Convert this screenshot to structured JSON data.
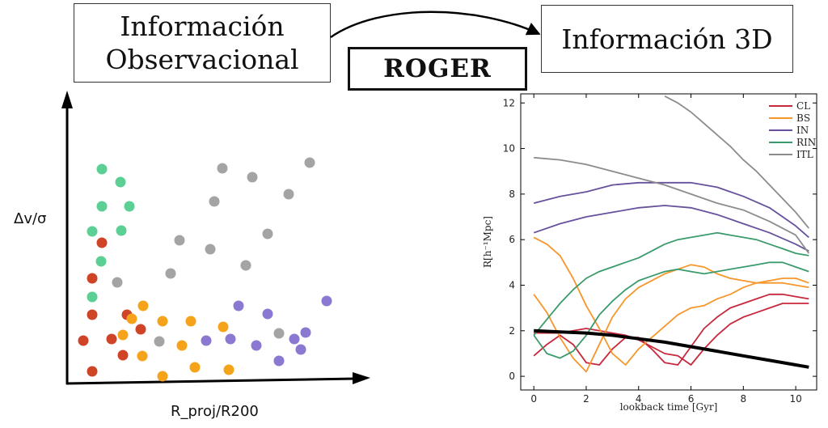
{
  "header": {
    "obs_line1": "Información",
    "obs_line2": "Observacional",
    "roger": "ROGER",
    "info3d": "Información 3D"
  },
  "left_plot": {
    "ylabel": "Δv/σ",
    "xlabel": "R_proj/R200",
    "colors": {
      "green": "#5ccf95",
      "red": "#cf4426",
      "orange": "#f5a31b",
      "gray": "#a4a4a4",
      "purple": "#8b78d0"
    }
  },
  "chart_data": {
    "type": "line",
    "xlabel": "lookback time [Gyr]",
    "ylabel": "R[h⁻¹Mpc]",
    "xlim": [
      -0.5,
      10.8
    ],
    "ylim": [
      -0.6,
      12.4
    ],
    "xticks": [
      0,
      2,
      4,
      6,
      8,
      10
    ],
    "yticks": [
      0,
      2,
      4,
      6,
      8,
      10,
      12
    ],
    "legend": {
      "placement": "top-right",
      "entries": [
        {
          "label": "CL",
          "color": "#c8283c"
        },
        {
          "label": "BS",
          "color": "#f7962c"
        },
        {
          "label": "IN",
          "color": "#67519c"
        },
        {
          "label": "RIN",
          "color": "#3a9b6c"
        },
        {
          "label": "ITL",
          "color": "#8c8c8c"
        }
      ]
    },
    "series": [
      {
        "group": "CL",
        "x": [
          0,
          0.5,
          1,
          1.5,
          2,
          2.5,
          3,
          3.5,
          4,
          4.5,
          5,
          5.5,
          6,
          6.5,
          7,
          7.5,
          8,
          8.5,
          9,
          9.5,
          10,
          10.5
        ],
        "y": [
          0.9,
          1.4,
          1.8,
          1.4,
          0.6,
          0.5,
          1.2,
          1.7,
          1.7,
          1.2,
          0.6,
          0.5,
          1.3,
          2.1,
          2.6,
          3.0,
          3.2,
          3.4,
          3.6,
          3.6,
          3.5,
          3.4
        ]
      },
      {
        "group": "CL",
        "x": [
          0,
          0.5,
          1,
          1.5,
          2,
          2.5,
          3,
          3.5,
          4,
          4.5,
          5,
          5.5,
          6,
          6.5,
          7,
          7.5,
          8,
          8.5,
          9,
          9.5,
          10,
          10.5
        ],
        "y": [
          1.9,
          1.9,
          1.9,
          2.0,
          2.1,
          2.0,
          1.9,
          1.8,
          1.6,
          1.3,
          1.0,
          0.9,
          0.5,
          1.2,
          1.8,
          2.3,
          2.6,
          2.8,
          3.0,
          3.2,
          3.2,
          3.2
        ]
      },
      {
        "group": "BS",
        "x": [
          0,
          0.5,
          1,
          1.5,
          2,
          2.5,
          3,
          3.5,
          4,
          4.5,
          5,
          5.5,
          6,
          6.5,
          7,
          7.5,
          8,
          8.5,
          9,
          9.5,
          10,
          10.5
        ],
        "y": [
          3.6,
          2.8,
          1.7,
          0.8,
          0.2,
          1.4,
          2.6,
          3.4,
          3.9,
          4.2,
          4.5,
          4.7,
          4.9,
          4.8,
          4.5,
          4.3,
          4.2,
          4.1,
          4.1,
          4.1,
          4.0,
          3.9
        ]
      },
      {
        "group": "BS",
        "x": [
          0,
          0.5,
          1,
          1.5,
          2,
          2.5,
          3,
          3.5,
          4,
          4.5,
          5,
          5.5,
          6,
          6.5,
          7,
          7.5,
          8,
          8.5,
          9,
          9.5,
          10,
          10.5
        ],
        "y": [
          6.1,
          5.8,
          5.3,
          4.3,
          3.1,
          2.1,
          1.0,
          0.5,
          1.2,
          1.7,
          2.2,
          2.7,
          3.0,
          3.1,
          3.4,
          3.6,
          3.9,
          4.1,
          4.2,
          4.3,
          4.3,
          4.1
        ]
      },
      {
        "group": "IN",
        "x": [
          0,
          1,
          2,
          3,
          4,
          5,
          6,
          7,
          8,
          9,
          10,
          10.5
        ],
        "y": [
          7.6,
          7.9,
          8.1,
          8.4,
          8.5,
          8.5,
          8.5,
          8.3,
          7.9,
          7.4,
          6.6,
          6.1
        ]
      },
      {
        "group": "IN",
        "x": [
          0,
          1,
          2,
          3,
          4,
          5,
          6,
          7,
          8,
          9,
          10,
          10.5
        ],
        "y": [
          6.3,
          6.7,
          7.0,
          7.2,
          7.4,
          7.5,
          7.4,
          7.1,
          6.7,
          6.3,
          5.8,
          5.5
        ]
      },
      {
        "group": "RIN",
        "x": [
          0,
          0.5,
          1,
          1.5,
          2,
          2.5,
          3,
          3.5,
          4,
          4.5,
          5,
          5.5,
          6,
          6.5,
          7,
          7.5,
          8,
          8.5,
          9,
          9.5,
          10,
          10.5
        ],
        "y": [
          1.8,
          2.5,
          3.2,
          3.8,
          4.3,
          4.6,
          4.8,
          5.0,
          5.2,
          5.5,
          5.8,
          6.0,
          6.1,
          6.2,
          6.3,
          6.2,
          6.1,
          6.0,
          5.8,
          5.6,
          5.4,
          5.3
        ]
      },
      {
        "group": "RIN",
        "x": [
          0,
          0.5,
          1,
          1.5,
          2,
          2.5,
          3,
          3.5,
          4,
          4.5,
          5,
          5.5,
          6,
          6.5,
          7,
          7.5,
          8,
          8.5,
          9,
          9.5,
          10,
          10.5
        ],
        "y": [
          1.8,
          1.0,
          0.8,
          1.1,
          1.8,
          2.7,
          3.3,
          3.8,
          4.2,
          4.4,
          4.6,
          4.7,
          4.6,
          4.5,
          4.6,
          4.7,
          4.8,
          4.9,
          5.0,
          5.0,
          4.8,
          4.6
        ]
      },
      {
        "group": "ITL",
        "x": [
          0,
          1,
          2,
          3,
          4,
          5,
          6,
          7,
          8,
          9,
          10,
          10.5
        ],
        "y": [
          9.6,
          9.5,
          9.3,
          9.0,
          8.7,
          8.4,
          8.0,
          7.6,
          7.3,
          6.8,
          6.2,
          5.4
        ]
      },
      {
        "group": "ITL",
        "x": [
          5,
          5.5,
          6,
          6.5,
          7,
          7.5,
          8,
          8.5,
          9,
          9.5,
          10,
          10.5
        ],
        "y": [
          12.3,
          12.0,
          11.6,
          11.1,
          10.6,
          10.1,
          9.5,
          9.0,
          8.4,
          7.8,
          7.2,
          6.5
        ]
      },
      {
        "group": "main",
        "color": "#000000",
        "x": [
          0,
          1,
          2,
          3,
          4,
          5,
          6,
          7,
          8,
          9,
          10,
          10.5
        ],
        "y": [
          2.0,
          1.95,
          1.9,
          1.8,
          1.65,
          1.5,
          1.3,
          1.1,
          0.9,
          0.7,
          0.5,
          0.4
        ]
      }
    ]
  }
}
